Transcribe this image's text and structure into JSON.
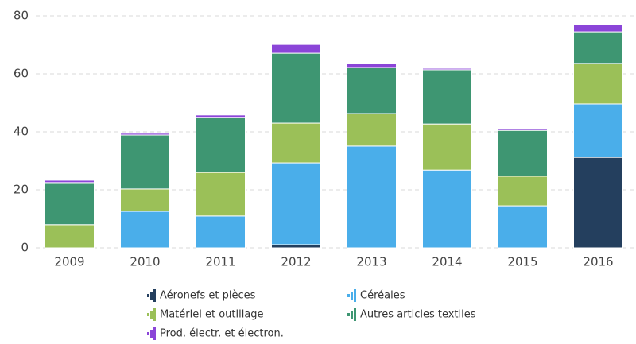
{
  "chart_data": {
    "type": "stacked_bar",
    "categories": [
      "2009",
      "2010",
      "2011",
      "2012",
      "2013",
      "2014",
      "2015",
      "2016"
    ],
    "series": [
      {
        "name": "Aéronefs et pièces",
        "color": "#243f5e",
        "values": [
          0,
          0,
          0,
          1.1,
          0,
          0,
          0,
          31.2
        ]
      },
      {
        "name": "Céréales",
        "color": "#4aaeea",
        "values": [
          0,
          12.6,
          11,
          28.2,
          35.1,
          26.8,
          14.5,
          18.4
        ]
      },
      {
        "name": "Matériel et outillage",
        "color": "#9bc058",
        "values": [
          8,
          7.7,
          15,
          13.7,
          11.2,
          15.9,
          10.2,
          14
        ]
      },
      {
        "name": "Autres articles textiles",
        "color": "#3e9672",
        "values": [
          14.5,
          18.6,
          19,
          24.1,
          15.9,
          18.7,
          15.8,
          10.9
        ]
      },
      {
        "name": "Prod. électr. et électron.",
        "color": "#8b45d8",
        "values": [
          0.8,
          0.6,
          0.8,
          3,
          1.4,
          0.5,
          0.6,
          2.5
        ]
      }
    ],
    "ylim": [
      0,
      80
    ],
    "yticks": [
      0,
      20,
      40,
      60,
      80
    ],
    "grid": true
  }
}
